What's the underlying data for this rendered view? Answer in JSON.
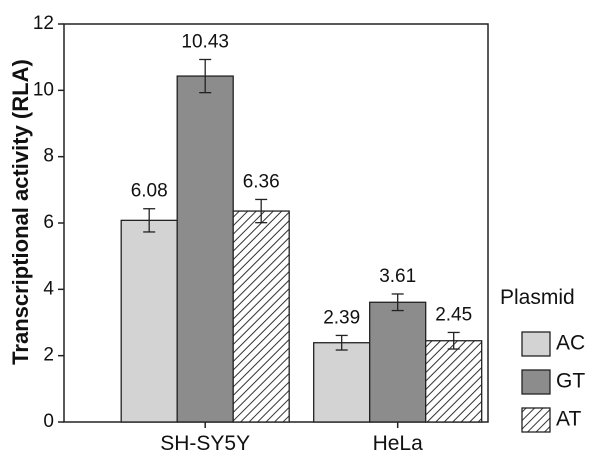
{
  "chart_data": {
    "type": "bar",
    "title": "",
    "xlabel": "",
    "ylabel": "Transcriptional activity (RLA)",
    "ylim": [
      0,
      12
    ],
    "yticks": [
      0,
      2,
      4,
      6,
      8,
      10,
      12
    ],
    "categories": [
      "SH-SY5Y",
      "HeLa"
    ],
    "grid": false,
    "legend": {
      "title": "Plasmid",
      "placement": "right"
    },
    "series": [
      {
        "name": "AC",
        "values": [
          6.08,
          2.39
        ],
        "error": [
          0.35,
          0.22
        ],
        "labels": [
          "6.08",
          "2.39"
        ],
        "color": "#d3d3d3",
        "pattern": "solid"
      },
      {
        "name": "GT",
        "values": [
          10.43,
          3.61
        ],
        "error": [
          0.5,
          0.25
        ],
        "labels": [
          "10.43",
          "3.61"
        ],
        "color": "#8c8c8c",
        "pattern": "solid"
      },
      {
        "name": "AT",
        "values": [
          6.36,
          2.45
        ],
        "error": [
          0.35,
          0.25
        ],
        "labels": [
          "6.36",
          "2.45"
        ],
        "color": "#ffffff",
        "pattern": "diagonal-hatch"
      }
    ]
  }
}
